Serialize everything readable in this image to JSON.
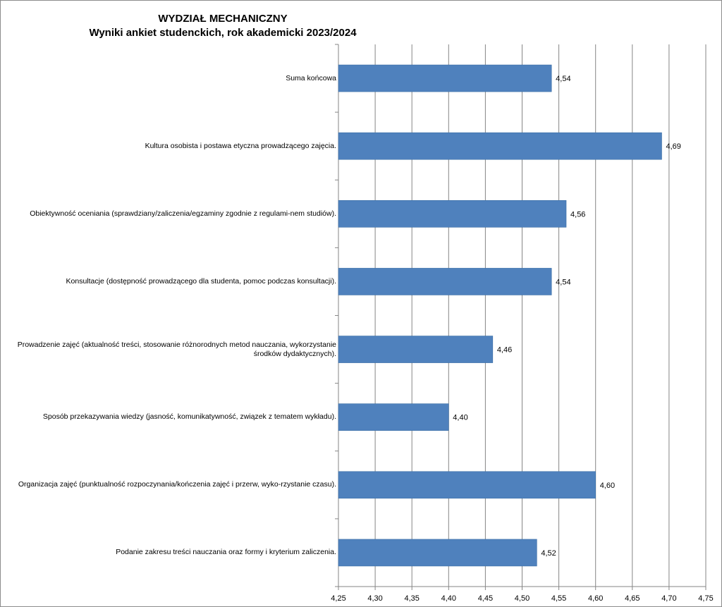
{
  "chart_data": {
    "type": "bar",
    "orientation": "horizontal",
    "title": "WYDZIAŁ MECHANICZNY",
    "subtitle": "Wyniki ankiet studenckich, rok akademicki 2023/2024",
    "xlabel": "",
    "ylabel": "",
    "xlim": [
      4.25,
      4.75
    ],
    "x_ticks": [
      "4,25",
      "4,30",
      "4,35",
      "4,40",
      "4,45",
      "4,50",
      "4,55",
      "4,60",
      "4,65",
      "4,70",
      "4,75"
    ],
    "grid": "vertical",
    "legend": "none",
    "bar_color": "#4F81BD",
    "categories": [
      "Suma końcowa",
      "Kultura osobista i postawa etyczna prowadzącego zajęcia.",
      "Obiektywność oceniania (sprawdziany/zaliczenia/egzaminy zgodnie z regulami-nem studiów).",
      "Konsultacje (dostępność prowadzącego dla studenta, pomoc podczas konsultacji).",
      "Prowadzenie zajęć (aktualność treści, stosowanie różnorodnych metod nauczania, wykorzystanie środków dydaktycznych).",
      "Sposób przekazywania wiedzy (jasność, komunikatywność, związek z tematem  wykładu).",
      "Organizacja zajęć (punktualność rozpoczynania/kończenia zajęć i przerw, wyko-rzystanie czasu).",
      "Podanie zakresu treści nauczania oraz formy i kryterium zaliczenia."
    ],
    "values": [
      4.54,
      4.69,
      4.56,
      4.54,
      4.46,
      4.4,
      4.6,
      4.52
    ],
    "value_labels": [
      "4,54",
      "4,69",
      "4,56",
      "4,54",
      "4,46",
      "4,40",
      "4,60",
      "4,52"
    ]
  }
}
